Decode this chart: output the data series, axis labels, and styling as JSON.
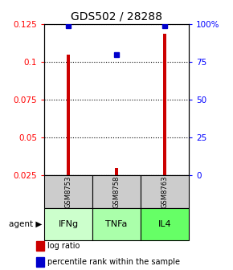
{
  "title": "GDS502 / 28288",
  "samples": [
    "GSM8753",
    "GSM8758",
    "GSM8763"
  ],
  "agents": [
    "IFNg",
    "TNFa",
    "IL4"
  ],
  "log_ratios": [
    0.105,
    0.03,
    0.119
  ],
  "percentile_ranks": [
    99,
    80,
    99
  ],
  "left_ylim": [
    0.025,
    0.125
  ],
  "left_yticks": [
    0.025,
    0.05,
    0.075,
    0.1,
    0.125
  ],
  "right_ylim": [
    0,
    100
  ],
  "right_yticks": [
    0,
    25,
    50,
    75,
    100
  ],
  "right_yticklabels": [
    "0",
    "25",
    "50",
    "75",
    "100%"
  ],
  "bar_color": "#cc0000",
  "dot_color": "#0000cc",
  "agent_colors": [
    "#ccffcc",
    "#aaffaa",
    "#66ff66"
  ],
  "sample_bg_color": "#cccccc",
  "bar_width": 0.06,
  "title_fontsize": 10,
  "tick_fontsize": 7.5,
  "legend_fontsize": 7
}
